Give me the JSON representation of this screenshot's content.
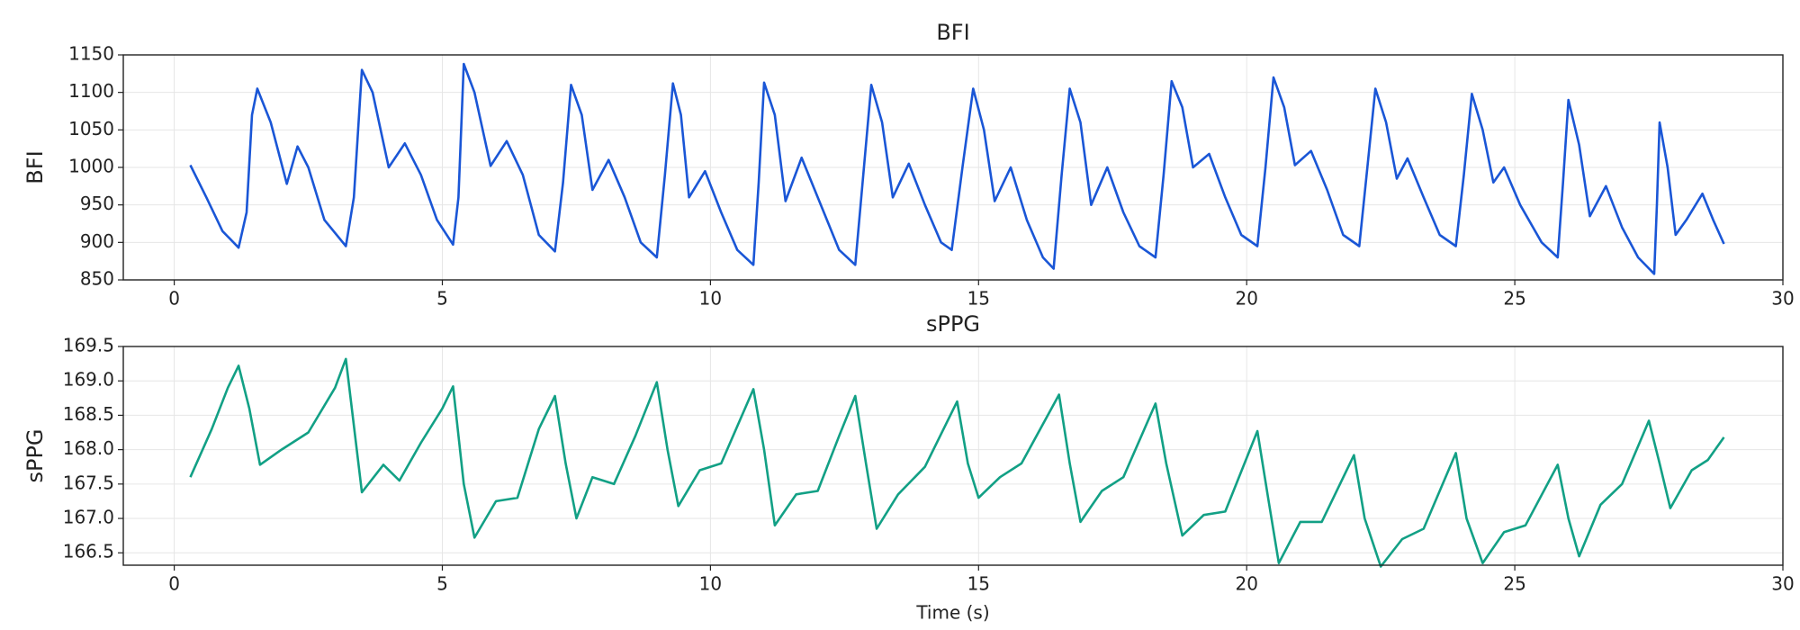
{
  "chart_data": [
    {
      "type": "line",
      "title": "BFI",
      "ylabel": "BFI",
      "grid": true,
      "xlim": [
        -0.95,
        30
      ],
      "xticks": [
        0,
        5,
        10,
        15,
        20,
        25,
        30
      ],
      "ylim": [
        850,
        1150
      ],
      "yticks": [
        850,
        900,
        950,
        1000,
        1050,
        1100,
        1150
      ],
      "x": [
        0.3,
        0.6,
        0.9,
        1.2,
        1.35,
        1.45,
        1.55,
        1.8,
        2.1,
        2.3,
        2.5,
        2.8,
        3.2,
        3.35,
        3.5,
        3.7,
        4.0,
        4.3,
        4.6,
        4.9,
        5.2,
        5.3,
        5.4,
        5.6,
        5.9,
        6.2,
        6.5,
        6.8,
        7.1,
        7.25,
        7.4,
        7.6,
        7.8,
        8.1,
        8.4,
        8.7,
        9.0,
        9.15,
        9.3,
        9.45,
        9.6,
        9.9,
        10.2,
        10.5,
        10.8,
        10.9,
        11.0,
        11.2,
        11.4,
        11.7,
        12.0,
        12.4,
        12.7,
        12.85,
        13.0,
        13.2,
        13.4,
        13.7,
        14.0,
        14.3,
        14.5,
        14.7,
        14.9,
        15.1,
        15.3,
        15.6,
        15.9,
        16.2,
        16.4,
        16.55,
        16.7,
        16.9,
        17.1,
        17.4,
        17.7,
        18.0,
        18.3,
        18.45,
        18.6,
        18.8,
        19.0,
        19.3,
        19.6,
        19.9,
        20.2,
        20.35,
        20.5,
        20.7,
        20.9,
        21.2,
        21.5,
        21.8,
        22.1,
        22.25,
        22.4,
        22.6,
        22.8,
        23.0,
        23.3,
        23.6,
        23.9,
        24.05,
        24.2,
        24.4,
        24.6,
        24.8,
        25.1,
        25.5,
        25.8,
        25.9,
        26.0,
        26.2,
        26.4,
        26.7,
        27.0,
        27.3,
        27.6,
        27.65,
        27.7,
        27.85,
        28.0,
        28.2,
        28.5,
        28.7,
        28.9
      ],
      "series": [
        {
          "name": "BFI",
          "color": "#1a56d6",
          "values": [
            1003,
            960,
            915,
            893,
            940,
            1070,
            1105,
            1060,
            978,
            1028,
            1000,
            930,
            895,
            960,
            1130,
            1100,
            1000,
            1032,
            990,
            930,
            897,
            960,
            1138,
            1100,
            1002,
            1035,
            990,
            910,
            888,
            980,
            1110,
            1070,
            970,
            1010,
            960,
            900,
            880,
            990,
            1112,
            1070,
            960,
            995,
            940,
            890,
            870,
            980,
            1113,
            1070,
            955,
            1013,
            960,
            890,
            870,
            990,
            1110,
            1060,
            960,
            1005,
            950,
            900,
            890,
            1000,
            1105,
            1050,
            955,
            1000,
            930,
            880,
            865,
            990,
            1105,
            1060,
            950,
            1000,
            940,
            895,
            880,
            990,
            1115,
            1080,
            1000,
            1018,
            960,
            910,
            895,
            1000,
            1120,
            1080,
            1003,
            1022,
            970,
            910,
            895,
            1000,
            1105,
            1060,
            985,
            1012,
            960,
            910,
            895,
            990,
            1098,
            1050,
            980,
            1000,
            950,
            900,
            880,
            980,
            1090,
            1030,
            935,
            975,
            920,
            880,
            858,
            950,
            1060,
            1000,
            910,
            930,
            965,
            930,
            898
          ]
        }
      ]
    },
    {
      "type": "line",
      "title": "sPPG",
      "ylabel": "sPPG",
      "xlabel": "Time (s)",
      "grid": true,
      "xlim": [
        -0.95,
        30
      ],
      "xticks": [
        0,
        5,
        10,
        15,
        20,
        25,
        30
      ],
      "ylim": [
        166.32,
        169.5
      ],
      "yticks": [
        166.5,
        {
          "value": 167,
          "label": "167.0"
        },
        167.5,
        {
          "value": 168,
          "label": "168.0"
        },
        168.5,
        {
          "value": 169,
          "label": "169.0"
        },
        169.5
      ],
      "x": [
        0.3,
        0.7,
        1.0,
        1.2,
        1.4,
        1.6,
        2.0,
        2.5,
        3.0,
        3.2,
        3.5,
        3.9,
        4.2,
        4.6,
        5.0,
        5.2,
        5.4,
        5.6,
        6.0,
        6.4,
        6.8,
        7.1,
        7.3,
        7.5,
        7.8,
        8.2,
        8.6,
        9.0,
        9.2,
        9.4,
        9.8,
        10.2,
        10.8,
        11.0,
        11.2,
        11.6,
        12.0,
        12.4,
        12.7,
        12.9,
        13.1,
        13.5,
        14.0,
        14.6,
        14.8,
        15.0,
        15.4,
        15.8,
        16.5,
        16.7,
        16.9,
        17.3,
        17.7,
        18.3,
        18.5,
        18.8,
        19.2,
        19.6,
        20.2,
        20.4,
        20.6,
        21.0,
        21.4,
        22.0,
        22.2,
        22.5,
        22.9,
        23.3,
        23.9,
        24.1,
        24.4,
        24.8,
        25.2,
        25.8,
        26.0,
        26.2,
        26.6,
        27.0,
        27.5,
        27.7,
        27.9,
        28.3,
        28.6,
        28.9
      ],
      "series": [
        {
          "name": "sPPG",
          "color": "#12a085",
          "values": [
            167.6,
            168.3,
            168.9,
            169.22,
            168.6,
            167.78,
            168.0,
            168.25,
            168.9,
            169.32,
            167.38,
            167.78,
            167.55,
            168.1,
            168.6,
            168.92,
            167.5,
            166.72,
            167.25,
            167.3,
            168.3,
            168.78,
            167.8,
            167.0,
            167.6,
            167.5,
            168.2,
            168.98,
            168.0,
            167.18,
            167.7,
            167.8,
            168.88,
            168.0,
            166.9,
            167.35,
            167.4,
            168.2,
            168.78,
            167.8,
            166.85,
            167.35,
            167.75,
            168.7,
            167.8,
            167.3,
            167.6,
            167.8,
            168.8,
            167.8,
            166.95,
            167.4,
            167.6,
            168.67,
            167.8,
            166.75,
            167.05,
            167.1,
            168.27,
            167.3,
            166.35,
            166.95,
            166.95,
            167.92,
            167.0,
            166.3,
            166.7,
            166.85,
            167.95,
            167.0,
            166.35,
            166.8,
            166.9,
            167.78,
            167.0,
            166.45,
            167.2,
            167.5,
            168.42,
            167.8,
            167.15,
            167.7,
            167.85,
            168.18
          ]
        }
      ]
    }
  ]
}
